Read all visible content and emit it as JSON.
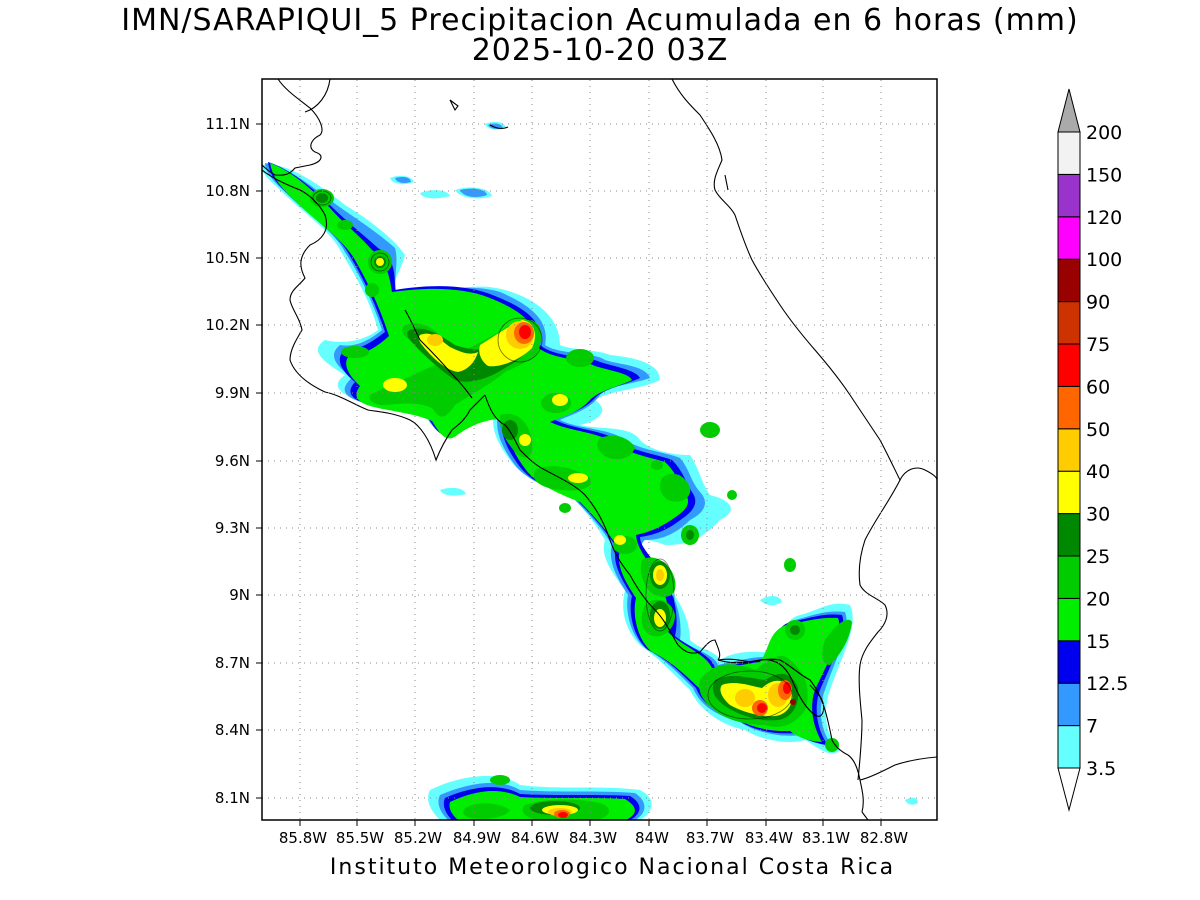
{
  "title": {
    "line1": "IMN/SARAPIQUI_5 Precipitacion Acumulada en 6 horas (mm)",
    "line2": "2025-10-20 03Z"
  },
  "footer": "Instituto Meteorologico Nacional Costa Rica",
  "map": {
    "lon_range": [
      -86.0,
      -82.6
    ],
    "lat_range": [
      8.0,
      11.3
    ],
    "lon_ticks": [
      "85.8W",
      "85.5W",
      "85.2W",
      "84.9W",
      "84.6W",
      "84.3W",
      "84W",
      "83.7W",
      "83.4W",
      "83.1W",
      "82.8W"
    ],
    "lat_ticks": [
      "11.1N",
      "10.8N",
      "10.5N",
      "10.2N",
      "9.9N",
      "9.6N",
      "9.3N",
      "9N",
      "8.7N",
      "8.4N",
      "8.1N"
    ],
    "grid": "dotted"
  },
  "colorbar": {
    "labels": [
      "3.5",
      "7",
      "12.5",
      "15",
      "20",
      "25",
      "30",
      "40",
      "50",
      "60",
      "75",
      "90",
      "100",
      "120",
      "150",
      "200"
    ],
    "colors": [
      "#66ffff",
      "#3399ff",
      "#0000ee",
      "#00ee00",
      "#00cc00",
      "#008800",
      "#ffff00",
      "#ffcc00",
      "#ff6600",
      "#ff0000",
      "#cc3300",
      "#990000",
      "#ff00ff",
      "#9933cc",
      "#f2f2f2"
    ],
    "over_color": "#aaaaaa",
    "under_color": "#ffffff"
  }
}
